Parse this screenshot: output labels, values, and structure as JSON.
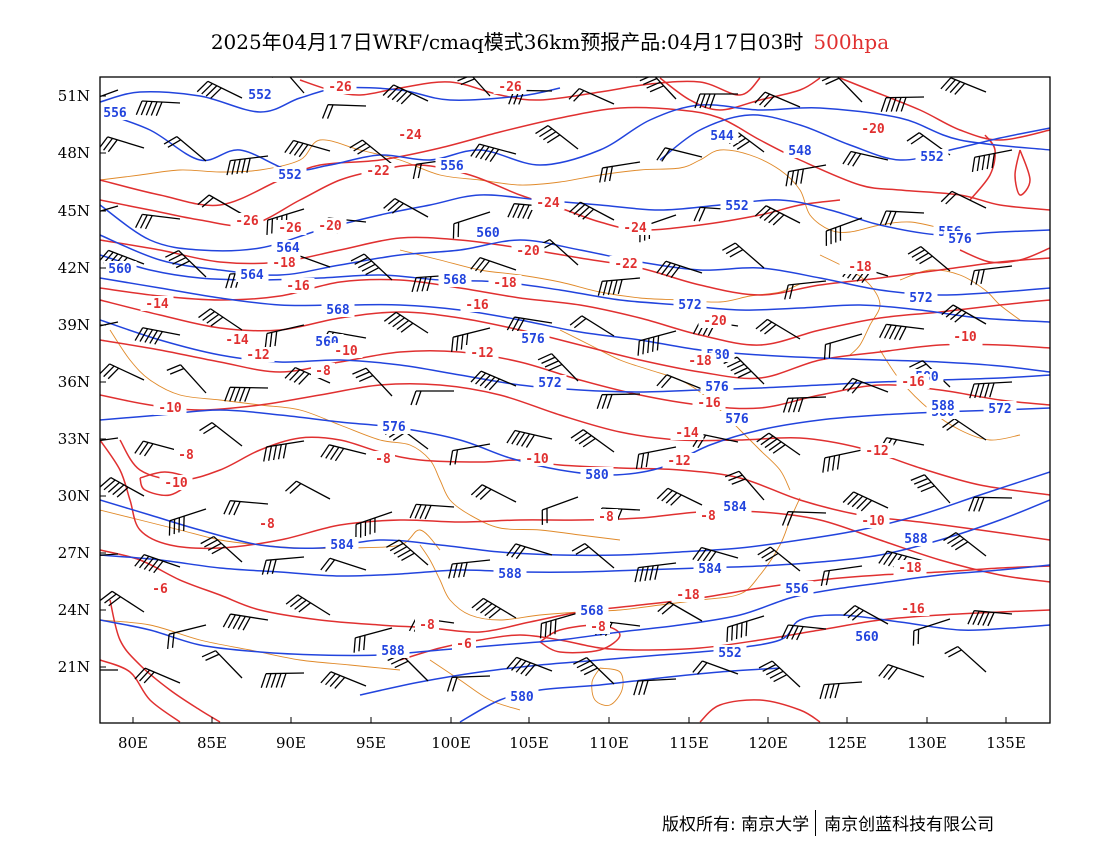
{
  "title": {
    "main": "2025年04月17日WRF/cmaq模式36km预报产品:04月17日03时",
    "level": "500hpa"
  },
  "colors": {
    "height_contour": "#2244dd",
    "temperature_contour": "#e03030",
    "border": "#e08a2a",
    "wind_barb": "#000000"
  },
  "axes": {
    "lat_labels": [
      "51N",
      "48N",
      "45N",
      "42N",
      "39N",
      "36N",
      "33N",
      "30N",
      "27N",
      "24N",
      "21N"
    ],
    "lon_labels": [
      "80E",
      "85E",
      "90E",
      "95E",
      "100E",
      "105E",
      "110E",
      "115E",
      "120E",
      "125E",
      "130E",
      "135E"
    ]
  },
  "height_labels": [
    "556",
    "552",
    "552",
    "556",
    "544",
    "548",
    "552",
    "552",
    "556",
    "560",
    "564",
    "564",
    "568",
    "560",
    "568",
    "572",
    "560",
    "580",
    "572",
    "576",
    "572",
    "576",
    "576",
    "576",
    "580",
    "580",
    "580",
    "584",
    "584",
    "588",
    "584",
    "588",
    "588",
    "568",
    "556",
    "560",
    "552",
    "580",
    "588",
    "572",
    "576"
  ],
  "temp_labels": [
    "-26",
    "-26",
    "-24",
    "-22",
    "-20",
    "-26",
    "-24",
    "-20",
    "-26",
    "-24",
    "-18",
    "-16",
    "-20",
    "-18",
    "-16",
    "-22",
    "-20",
    "-18",
    "-18",
    "-14",
    "-14",
    "-12",
    "-10",
    "-12",
    "-8",
    "-10",
    "-8",
    "-10",
    "-8",
    "-10",
    "-12",
    "-14",
    "-16",
    "-16",
    "-12",
    "-14",
    "-10",
    "-8",
    "-8",
    "-8",
    "-6",
    "-8",
    "-6",
    "-8",
    "-18",
    "-16",
    "-18",
    "-18",
    "-10"
  ],
  "footer": {
    "copyright": "版权所有: 南京大学",
    "company": "南京创蓝科技有限公司"
  }
}
